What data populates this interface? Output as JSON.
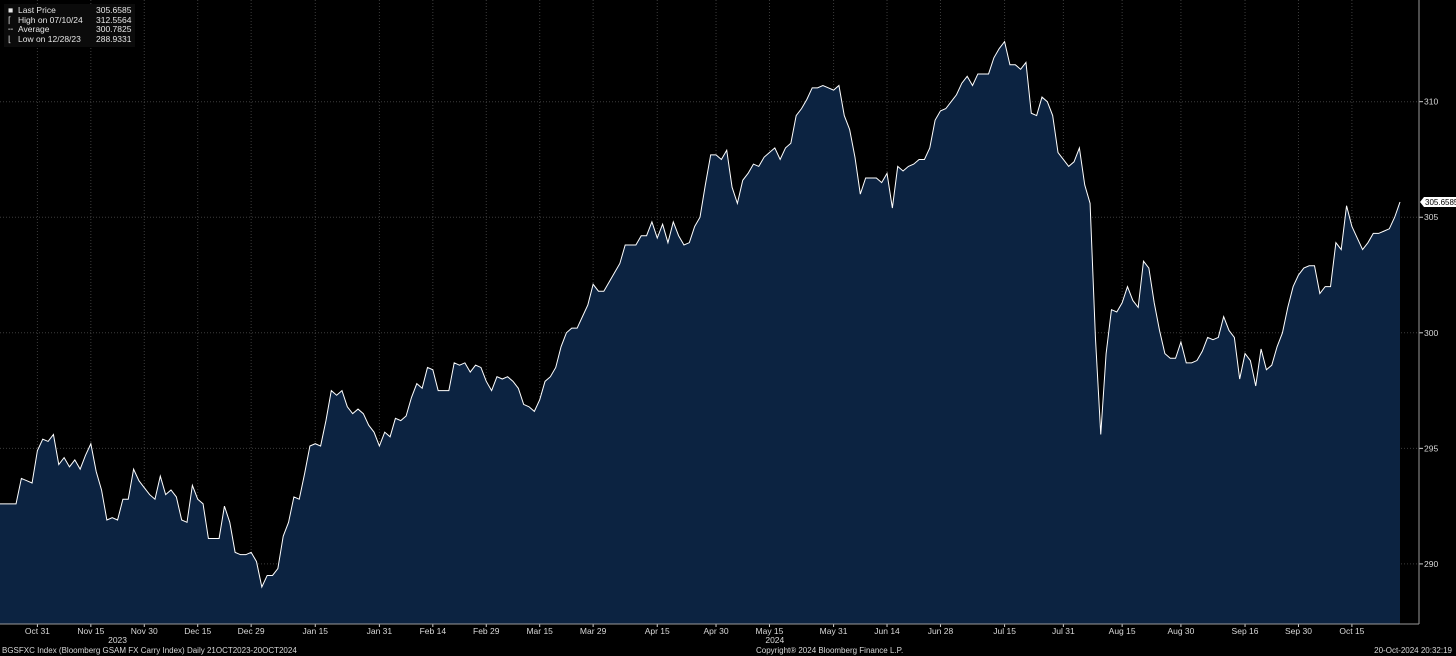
{
  "chart_data": {
    "type": "area",
    "title": "",
    "xlabel": "",
    "ylabel": "",
    "ylim": [
      287.4,
      314.4
    ],
    "yticks": [
      290,
      295,
      300,
      305,
      310
    ],
    "xtick_labels": [
      "Oct 31",
      "Nov 15",
      "Nov 30",
      "Dec 15",
      "Dec 29",
      "Jan 15",
      "Jan 31",
      "Feb 14",
      "Feb 29",
      "Mar 15",
      "Mar 29",
      "Apr 15",
      "Apr 30",
      "May 15",
      "May 31",
      "Jun 14",
      "Jun 28",
      "Jul 15",
      "Jul 31",
      "Aug 15",
      "Aug 30",
      "Sep 16",
      "Sep 30",
      "Oct 15"
    ],
    "xtick_index": [
      7,
      17,
      27,
      37,
      47,
      59,
      71,
      81,
      91,
      101,
      111,
      123,
      134,
      144,
      156,
      166,
      176,
      188,
      199,
      210,
      221,
      233,
      243,
      253
    ],
    "year_labels": [
      {
        "text": "2023",
        "index": 22
      },
      {
        "text": "2024",
        "index": 145
      }
    ],
    "grid": true,
    "last_label": "305.6585",
    "series": [
      {
        "name": "BGSFXC Index",
        "values": [
          292.6,
          292.6,
          292.6,
          292.6,
          293.7,
          293.6,
          293.5,
          294.9,
          295.4,
          295.3,
          295.6,
          294.3,
          294.6,
          294.2,
          294.5,
          294.1,
          294.7,
          295.2,
          294.0,
          293.2,
          291.9,
          292.0,
          291.9,
          292.8,
          292.8,
          294.1,
          293.6,
          293.3,
          293.0,
          292.8,
          293.8,
          293.0,
          293.2,
          292.9,
          291.9,
          291.8,
          293.4,
          292.8,
          292.6,
          291.1,
          291.1,
          291.1,
          292.5,
          291.8,
          290.5,
          290.4,
          290.4,
          290.5,
          290.1,
          289.0,
          289.5,
          289.5,
          289.8,
          291.2,
          291.8,
          292.9,
          292.8,
          293.9,
          295.1,
          295.2,
          295.1,
          296.2,
          297.5,
          297.3,
          297.5,
          296.8,
          296.5,
          296.7,
          296.5,
          296.0,
          295.7,
          295.1,
          295.7,
          295.5,
          296.3,
          296.2,
          296.4,
          297.2,
          297.8,
          297.6,
          298.5,
          298.4,
          297.5,
          297.5,
          297.5,
          298.7,
          298.6,
          298.7,
          298.3,
          298.6,
          298.5,
          297.9,
          297.5,
          298.1,
          298.0,
          298.1,
          297.9,
          297.6,
          296.9,
          296.8,
          296.6,
          297.1,
          297.9,
          298.1,
          298.5,
          299.4,
          300.0,
          300.2,
          300.2,
          300.7,
          301.2,
          302.1,
          301.8,
          301.8,
          302.2,
          302.6,
          303.0,
          303.8,
          303.8,
          303.8,
          304.2,
          304.2,
          304.8,
          304.1,
          304.7,
          303.9,
          304.8,
          304.2,
          303.8,
          303.9,
          304.6,
          305.0,
          306.4,
          307.7,
          307.7,
          307.5,
          307.9,
          306.3,
          305.6,
          306.6,
          306.9,
          307.3,
          307.2,
          307.6,
          307.8,
          308.0,
          307.5,
          308.0,
          308.2,
          309.4,
          309.7,
          310.1,
          310.6,
          310.6,
          310.7,
          310.6,
          310.5,
          310.7,
          309.4,
          308.8,
          307.6,
          306.0,
          306.7,
          306.7,
          306.7,
          306.5,
          306.9,
          305.4,
          307.2,
          307.0,
          307.2,
          307.3,
          307.5,
          307.5,
          308.0,
          309.2,
          309.6,
          309.7,
          310.0,
          310.3,
          310.8,
          311.1,
          310.7,
          311.2,
          311.2,
          311.2,
          311.9,
          312.3,
          312.6,
          311.6,
          311.6,
          311.4,
          311.7,
          309.5,
          309.4,
          310.2,
          310.0,
          309.4,
          307.8,
          307.5,
          307.2,
          307.4,
          308.0,
          306.4,
          305.6,
          299.8,
          295.6,
          299.1,
          301.0,
          300.9,
          301.3,
          302.0,
          301.4,
          301.1,
          303.1,
          302.8,
          301.3,
          300.1,
          299.1,
          298.9,
          298.9,
          299.6,
          298.7,
          298.7,
          298.8,
          299.2,
          299.8,
          299.7,
          299.8,
          300.7,
          300.1,
          299.8,
          298.0,
          299.1,
          298.8,
          297.7,
          299.3,
          298.4,
          298.6,
          299.4,
          300.0,
          301.1,
          302.0,
          302.5,
          302.8,
          302.9,
          302.9,
          301.7,
          302.0,
          302.0,
          303.9,
          303.6,
          305.5,
          304.6,
          304.1,
          303.6,
          303.9,
          304.3,
          304.3,
          304.4,
          304.5,
          305.0,
          305.66
        ]
      }
    ],
    "stats": {
      "last": {
        "label": "Last Price",
        "value": "305.6585"
      },
      "high": {
        "label": "High on 07/10/24",
        "value": "312.5564"
      },
      "average": {
        "label": "Average",
        "value": "300.7825"
      },
      "low": {
        "label": "Low on 12/28/23",
        "value": "288.9331"
      }
    },
    "colors": {
      "line": "#ffffff",
      "fill": "#0c2341",
      "grid": "#3c3c3c",
      "background": "#000000",
      "text": "#d8d8d8"
    }
  },
  "footer": {
    "left": "BGSFXC Index (Bloomberg GSAM FX Carry Index)  Daily 21OCT2023-20OCT2024",
    "center": "Copyright® 2024 Bloomberg Finance L.P.",
    "right": "20-Oct-2024 20:32:19"
  }
}
